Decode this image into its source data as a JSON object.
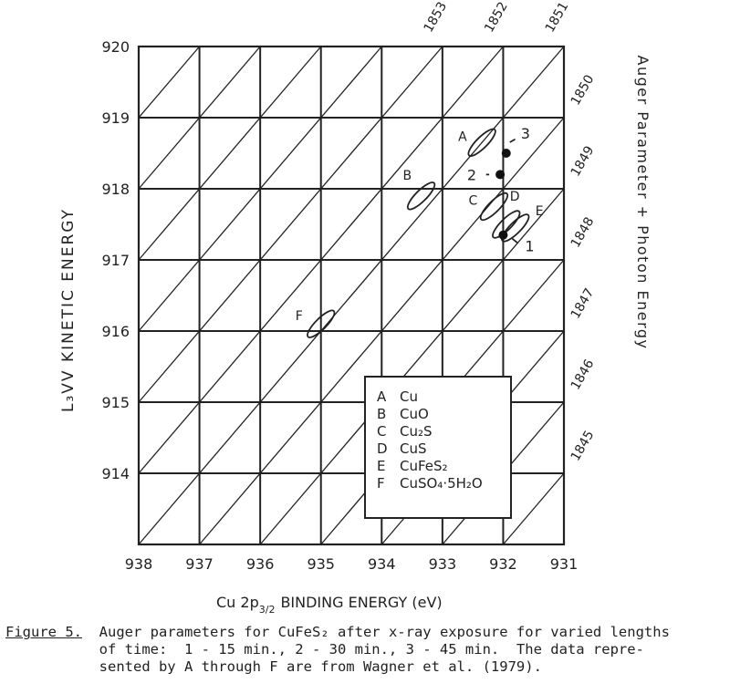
{
  "chart_data": {
    "type": "scatter",
    "title": "",
    "xlabel": "Cu 2p",
    "xlabel_sub": "3/2",
    "xlabel_rest": "BINDING ENERGY   (eV)",
    "ylabel": "L₃VV  KINETIC  ENERGY",
    "right_label": "Auger Parameter + Photon Energy",
    "xlim": [
      938,
      931
    ],
    "ylim": [
      913,
      920
    ],
    "x_ticks": [
      "938",
      "937",
      "936",
      "935",
      "934",
      "933",
      "932",
      "931"
    ],
    "y_ticks": [
      "920",
      "919",
      "918",
      "917",
      "916",
      "915",
      "914"
    ],
    "diagonal_labels": [
      "1853",
      "1852",
      "1851",
      "1850",
      "1849",
      "1848",
      "1847",
      "1846",
      "1845"
    ],
    "grid": true,
    "reference_points": [
      {
        "label": "A",
        "x": 932.35,
        "y": 918.65
      },
      {
        "label": "B",
        "x": 933.35,
        "y": 917.9
      },
      {
        "label": "C",
        "x": 932.15,
        "y": 917.75
      },
      {
        "label": "D",
        "x": 931.95,
        "y": 917.5
      },
      {
        "label": "E",
        "x": 931.8,
        "y": 917.45
      },
      {
        "label": "F",
        "x": 935.0,
        "y": 916.1
      }
    ],
    "measured_points": [
      {
        "label": "1",
        "x": 932.0,
        "y": 917.35
      },
      {
        "label": "2",
        "x": 932.05,
        "y": 918.2
      },
      {
        "label": "3",
        "x": 931.95,
        "y": 918.5
      }
    ],
    "legend": {
      "position": "bottom-right",
      "entries": [
        {
          "key": "A",
          "text": "Cu"
        },
        {
          "key": "B",
          "text": "CuO"
        },
        {
          "key": "C",
          "text": "Cu₂S"
        },
        {
          "key": "D",
          "text": "CuS"
        },
        {
          "key": "E",
          "text": "CuFeS₂"
        },
        {
          "key": "F",
          "text": "CuSO₄·5H₂O"
        }
      ]
    }
  },
  "caption": {
    "figure_label": "Figure 5.",
    "line1": "Auger parameters for CuFeS₂ after x-ray exposure for varied lengths",
    "line2": "of time:  1 - 15 min., 2 - 30 min., 3 - 45 min.  The data repre-",
    "line3": "sented by A through F are from Wagner et al. (1979)."
  }
}
